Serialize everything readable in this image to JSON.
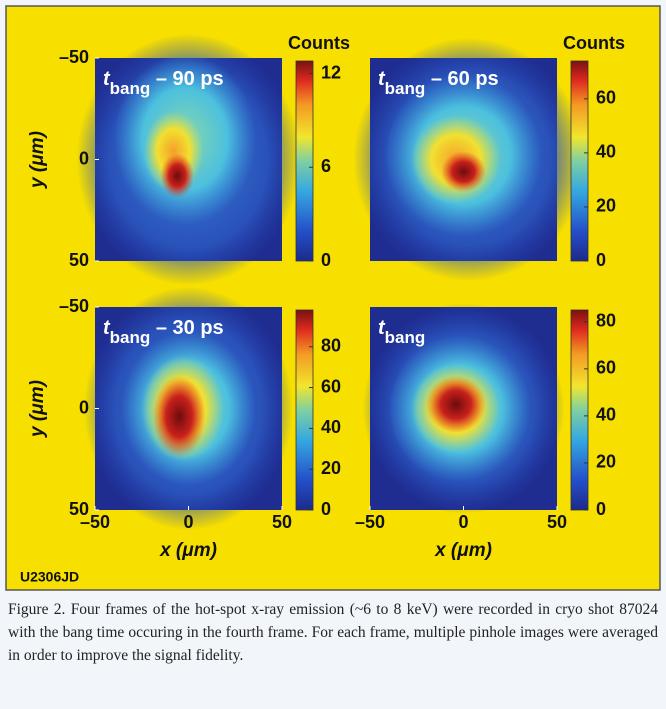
{
  "figure_id": "U2306JD",
  "xlabel": "x (μm)",
  "ylabel": "y (μm)",
  "xlim": [
    -50,
    50
  ],
  "ylim": [
    -50,
    50
  ],
  "xticks": [
    {
      "value": -50,
      "label": "–50"
    },
    0,
    50
  ],
  "yticks": [
    {
      "value": -50,
      "label": "–50"
    },
    0,
    50
  ],
  "panels": [
    {
      "label_t": "t",
      "label_sub": "bang",
      "label_suffix": " – 90 ps",
      "colorbar_title": "Counts",
      "clim": [
        0,
        12.8
      ],
      "cticks": [
        0,
        6,
        12
      ]
    },
    {
      "label_t": "t",
      "label_sub": "bang",
      "label_suffix": " – 60 ps",
      "colorbar_title": "Counts",
      "clim": [
        0,
        74
      ],
      "cticks": [
        0,
        20,
        40,
        60
      ]
    },
    {
      "label_t": "t",
      "label_sub": "bang",
      "label_suffix": " – 30 ps",
      "clim": [
        0,
        98
      ],
      "cticks": [
        0,
        20,
        40,
        60,
        80
      ]
    },
    {
      "label_t": "t",
      "label_sub": "bang",
      "label_suffix": "",
      "clim": [
        0,
        85
      ],
      "cticks": [
        0,
        20,
        40,
        60,
        80
      ]
    }
  ],
  "caption": "Figure 2. Four frames of the hot-spot x-ray emission (~6 to 8 keV) were recorded in cryo shot 87024 with the bang time occuring in the fourth frame. For each frame, multiple pinhole images were averaged in order to improve the signal fidelity."
}
